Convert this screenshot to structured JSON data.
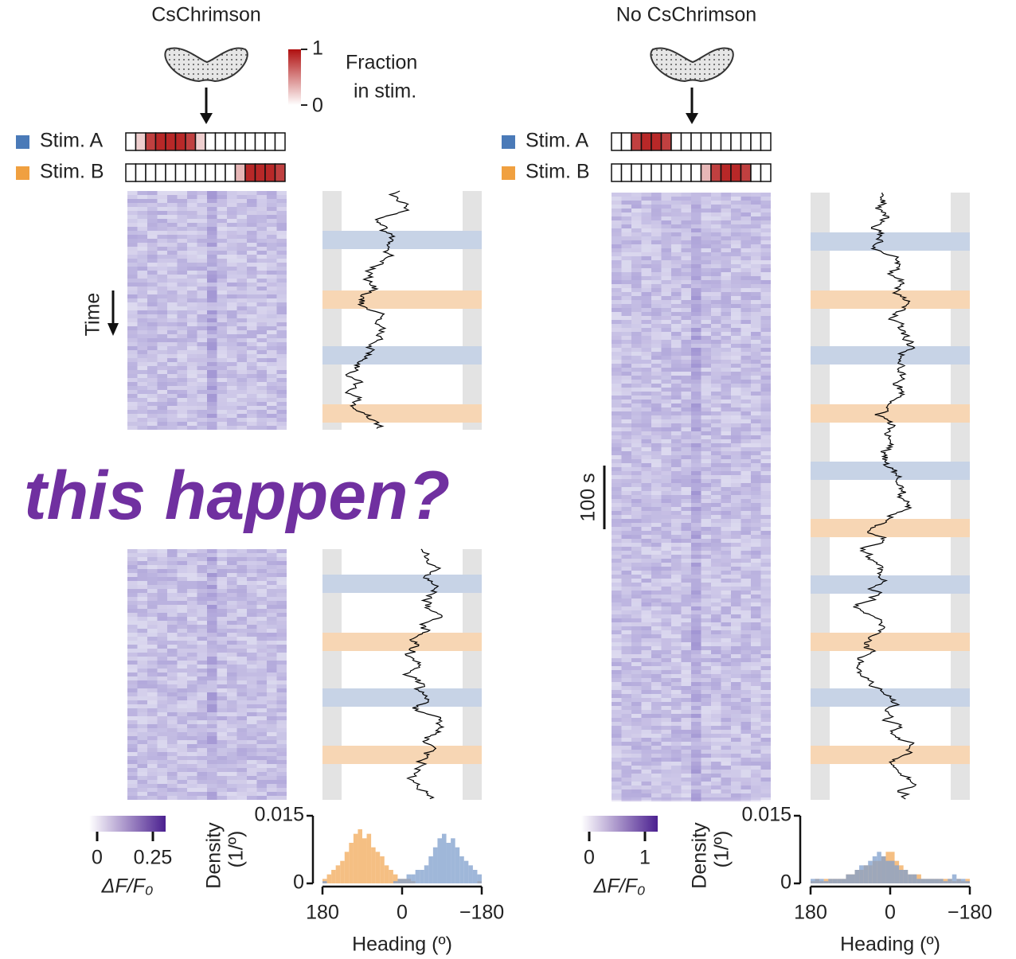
{
  "overlay_text": "this happen?",
  "time_label": "Time",
  "scale_bar_label": "100 s",
  "fraction_legend": {
    "label_lines": [
      "Fraction",
      "in stim."
    ],
    "ticks": [
      0,
      1
    ]
  },
  "panels": [
    {
      "title": "CsChrimson",
      "stim_labels": [
        "Stim. A",
        "Stim. B"
      ],
      "stim_a_fraction": [
        0,
        0.2,
        0.8,
        0.9,
        0.9,
        0.9,
        0.8,
        0.2,
        0,
        0,
        0,
        0,
        0,
        0,
        0,
        0
      ],
      "stim_b_fraction": [
        0,
        0,
        0,
        0,
        0,
        0,
        0,
        0,
        0,
        0,
        0,
        0.3,
        0.9,
        0.9,
        0.9,
        0.8
      ],
      "colorbar": {
        "ticks": [
          0,
          0.25
        ],
        "label": "ΔF/F₀"
      },
      "histogram": {
        "type": "histogram",
        "y_label_lines": [
          "Density",
          "(1/º)"
        ],
        "x_label": "Heading (º)",
        "bins": [
          180,
          170,
          160,
          150,
          140,
          130,
          120,
          110,
          100,
          90,
          80,
          70,
          60,
          50,
          40,
          30,
          20,
          10,
          0,
          -10,
          -20,
          -30,
          -40,
          -50,
          -60,
          -70,
          -80,
          -90,
          -100,
          -110,
          -120,
          -130,
          -140,
          -150,
          -160,
          -170,
          -180
        ],
        "xlim": [
          180,
          -180
        ],
        "xticks": [
          180,
          0,
          {
            "value": -180,
            "label": "−180"
          }
        ],
        "ylim": [
          0,
          0.015
        ],
        "yticks": [
          0,
          0.015
        ],
        "series": [
          {
            "name": "Stim. B",
            "color": "#f2a95a",
            "values": [
              0.001,
              0.002,
              0.003,
              0.004,
              0.005,
              0.007,
              0.009,
              0.011,
              0.012,
              0.01,
              0.011,
              0.008,
              0.007,
              0.006,
              0.004,
              0.003,
              0.002,
              0.001,
              0.001,
              0.001,
              0.0005,
              0,
              0,
              0,
              0,
              0,
              0,
              0,
              0,
              0,
              0,
              0,
              0,
              0,
              0,
              0.0005
            ]
          },
          {
            "name": "Stim. A",
            "color": "#7f9fcc",
            "values": [
              0.0005,
              0,
              0,
              0,
              0,
              0,
              0,
              0,
              0,
              0,
              0,
              0,
              0,
              0,
              0,
              0,
              0.0005,
              0.001,
              0.001,
              0.002,
              0.002,
              0.003,
              0.003,
              0.004,
              0.006,
              0.008,
              0.01,
              0.011,
              0.009,
              0.01,
              0.008,
              0.006,
              0.005,
              0.004,
              0.003,
              0.002
            ]
          }
        ]
      }
    },
    {
      "title": "No CsChrimson",
      "stim_labels": [
        "Stim. A",
        "Stim. B"
      ],
      "stim_a_fraction": [
        0,
        0,
        0.8,
        0.9,
        0.9,
        0.8,
        0,
        0,
        0,
        0,
        0,
        0,
        0,
        0,
        0,
        0
      ],
      "stim_b_fraction": [
        0,
        0,
        0,
        0,
        0,
        0,
        0,
        0,
        0,
        0.3,
        0.8,
        0.9,
        0.9,
        0.8,
        0,
        0
      ],
      "colorbar": {
        "ticks": [
          0,
          1
        ],
        "label": "ΔF/F₀"
      },
      "histogram": {
        "type": "histogram",
        "y_label_lines": [
          "Density",
          "(1/º)"
        ],
        "x_label": "Heading (º)",
        "bins": [
          180,
          170,
          160,
          150,
          140,
          130,
          120,
          110,
          100,
          90,
          80,
          70,
          60,
          50,
          40,
          30,
          20,
          10,
          0,
          -10,
          -20,
          -30,
          -40,
          -50,
          -60,
          -70,
          -80,
          -90,
          -100,
          -110,
          -120,
          -130,
          -140,
          -150,
          -160,
          -170,
          -180
        ],
        "xlim": [
          180,
          -180
        ],
        "xticks": [
          180,
          0,
          {
            "value": -180,
            "label": "−180"
          }
        ],
        "ylim": [
          0,
          0.015
        ],
        "yticks": [
          0,
          0.015
        ],
        "series": [
          {
            "name": "Stim. B",
            "color": "#f2a95a",
            "values": [
              0.0005,
              0.001,
              0.0005,
              0.001,
              0.001,
              0.001,
              0.001,
              0.001,
              0.002,
              0.002,
              0.003,
              0.003,
              0.004,
              0.004,
              0.005,
              0.005,
              0.006,
              0.007,
              0.007,
              0.005,
              0.004,
              0.003,
              0.002,
              0.002,
              0.002,
              0.001,
              0.001,
              0.001,
              0.001,
              0.001,
              0.001,
              0.001,
              0.0005,
              0.001,
              0.0005,
              0.001
            ]
          },
          {
            "name": "Stim. A",
            "color": "#7f9fcc",
            "values": [
              0.001,
              0.001,
              0.001,
              0.0005,
              0.001,
              0.001,
              0.001,
              0.001,
              0.002,
              0.002,
              0.003,
              0.004,
              0.004,
              0.005,
              0.006,
              0.007,
              0.006,
              0.005,
              0.005,
              0.004,
              0.003,
              0.003,
              0.002,
              0.002,
              0.001,
              0.001,
              0.001,
              0.001,
              0.001,
              0.001,
              0.0005,
              0.001,
              0.002,
              0.001,
              0.001,
              0.0005
            ]
          }
        ]
      }
    }
  ]
}
